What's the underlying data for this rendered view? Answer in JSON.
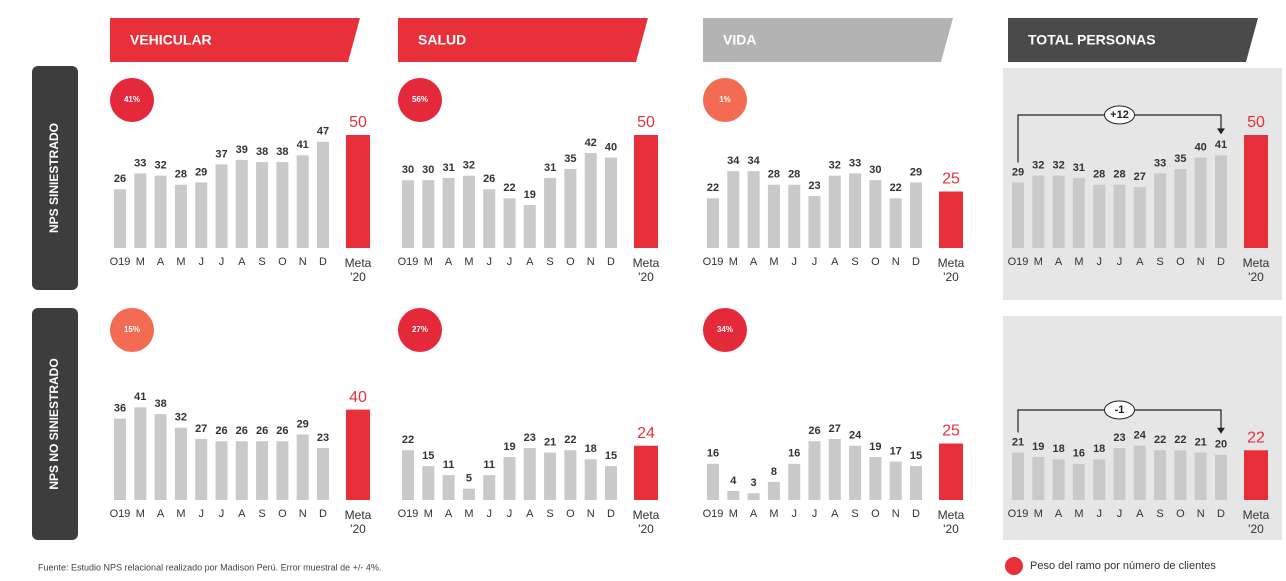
{
  "headers": [
    {
      "text": "VEHICULAR",
      "color": "#e8303a"
    },
    {
      "text": "SALUD",
      "color": "#e8303a"
    },
    {
      "text": "VIDA",
      "color": "#b3b3b3"
    },
    {
      "text": "TOTAL PERSONAS",
      "color": "#4a4a4a"
    }
  ],
  "row_labels": [
    "NPS SINIESTRADO",
    "NPS NO SINIESTRADO"
  ],
  "footer": "Fuente: Estudio NPS relacional realizado por Madison Perú. Error muestral de +/- 4%.",
  "legend": {
    "text": "Peso del ramo por número de clientes",
    "color": "#e8303a"
  },
  "chart_data": [
    {
      "type": "bar",
      "categories": [
        "O19",
        "M",
        "A",
        "M",
        "J",
        "J",
        "A",
        "S",
        "O",
        "N",
        "D"
      ],
      "values": [
        26,
        33,
        32,
        28,
        29,
        37,
        39,
        38,
        38,
        41,
        47
      ],
      "color": "#c9c9c9",
      "ylim": [
        0,
        50
      ],
      "target": {
        "label": [
          "Meta",
          "'20"
        ],
        "value": 50,
        "color": "#e8303a"
      },
      "weight": {
        "value": 41,
        "label": "41%",
        "color": "#e4293a"
      }
    },
    {
      "type": "bar",
      "categories": [
        "O19",
        "M",
        "A",
        "M",
        "J",
        "J",
        "A",
        "S",
        "O",
        "N",
        "D"
      ],
      "values": [
        30,
        30,
        31,
        32,
        26,
        22,
        19,
        31,
        35,
        42,
        40
      ],
      "color": "#c9c9c9",
      "ylim": [
        0,
        50
      ],
      "target": {
        "label": [
          "Meta",
          "'20"
        ],
        "value": 50,
        "color": "#e8303a"
      },
      "weight": {
        "value": 56,
        "label": "56%",
        "color": "#e4293a"
      }
    },
    {
      "type": "bar",
      "categories": [
        "O19",
        "M",
        "A",
        "M",
        "J",
        "J",
        "A",
        "S",
        "O",
        "N",
        "D"
      ],
      "values": [
        22,
        34,
        34,
        28,
        28,
        23,
        32,
        33,
        30,
        22,
        29
      ],
      "color": "#c9c9c9",
      "ylim": [
        0,
        50
      ],
      "target": {
        "label": [
          "Meta",
          "'20"
        ],
        "value": 25,
        "color": "#e8303a"
      },
      "weight": {
        "value": 1,
        "label": "1%",
        "color": "#f26b52"
      }
    },
    {
      "type": "bar",
      "categories": [
        "O19",
        "M",
        "A",
        "M",
        "J",
        "J",
        "A",
        "S",
        "O",
        "N",
        "D"
      ],
      "values": [
        29,
        32,
        32,
        31,
        28,
        28,
        27,
        33,
        35,
        40,
        41
      ],
      "color": "#c9c9c9",
      "ylim": [
        0,
        50
      ],
      "target": {
        "label": [
          "Meta",
          "'20"
        ],
        "value": 50,
        "color": "#e8303a"
      },
      "annotation": "+12"
    },
    {
      "type": "bar",
      "categories": [
        "O19",
        "M",
        "A",
        "M",
        "J",
        "J",
        "A",
        "S",
        "O",
        "N",
        "D"
      ],
      "values": [
        36,
        41,
        38,
        32,
        27,
        26,
        26,
        26,
        26,
        29,
        23
      ],
      "color": "#c9c9c9",
      "ylim": [
        0,
        50
      ],
      "target": {
        "label": [
          "Meta",
          "'20"
        ],
        "value": 40,
        "color": "#e8303a"
      },
      "weight": {
        "value": 15,
        "label": "15%",
        "color": "#f26b52"
      }
    },
    {
      "type": "bar",
      "categories": [
        "O19",
        "M",
        "A",
        "M",
        "J",
        "J",
        "A",
        "S",
        "O",
        "N",
        "D"
      ],
      "values": [
        22,
        15,
        11,
        5,
        11,
        19,
        23,
        21,
        22,
        18,
        15
      ],
      "color": "#c9c9c9",
      "ylim": [
        0,
        50
      ],
      "target": {
        "label": [
          "Meta",
          "'20"
        ],
        "value": 24,
        "color": "#e8303a"
      },
      "weight": {
        "value": 27,
        "label": "27%",
        "color": "#e4293a"
      }
    },
    {
      "type": "bar",
      "categories": [
        "O19",
        "M",
        "A",
        "M",
        "J",
        "J",
        "A",
        "S",
        "O",
        "N",
        "D"
      ],
      "values": [
        16,
        4,
        3,
        8,
        16,
        26,
        27,
        24,
        19,
        17,
        15
      ],
      "color": "#c9c9c9",
      "ylim": [
        0,
        50
      ],
      "target": {
        "label": [
          "Meta",
          "'20"
        ],
        "value": 25,
        "color": "#e8303a"
      },
      "weight": {
        "value": 34,
        "label": "34%",
        "color": "#e4293a"
      }
    },
    {
      "type": "bar",
      "categories": [
        "O19",
        "M",
        "A",
        "M",
        "J",
        "J",
        "A",
        "S",
        "O",
        "N",
        "D"
      ],
      "values": [
        21,
        19,
        18,
        16,
        18,
        23,
        24,
        22,
        22,
        21,
        20
      ],
      "color": "#c9c9c9",
      "ylim": [
        0,
        50
      ],
      "target": {
        "label": [
          "Meta",
          "'20"
        ],
        "value": 22,
        "color": "#e8303a"
      },
      "annotation": "-1"
    }
  ]
}
